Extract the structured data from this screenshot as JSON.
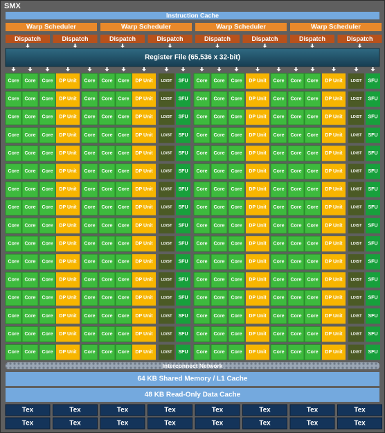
{
  "title": "SMX",
  "instruction_cache": "Instruction Cache",
  "warp_schedulers": [
    "Warp Scheduler",
    "Warp Scheduler",
    "Warp Scheduler",
    "Warp Scheduler"
  ],
  "dispatch_units": [
    "Dispatch",
    "Dispatch",
    "Dispatch",
    "Dispatch",
    "Dispatch",
    "Dispatch",
    "Dispatch",
    "Dispatch"
  ],
  "register_file": "Register File (65,536 x 32-bit)",
  "units": [
    [
      "Core",
      "Core",
      "Core",
      "DP Unit",
      "Core",
      "Core",
      "Core",
      "DP Unit",
      "LD/ST",
      "SFU",
      "Core",
      "Core",
      "Core",
      "DP Unit",
      "Core",
      "Core",
      "Core",
      "DP Unit",
      "LD/ST",
      "SFU"
    ],
    [
      "Core",
      "Core",
      "Core",
      "DP Unit",
      "Core",
      "Core",
      "Core",
      "DP Unit",
      "LD/ST",
      "SFU",
      "Core",
      "Core",
      "Core",
      "DP Unit",
      "Core",
      "Core",
      "Core",
      "DP Unit",
      "LD/ST",
      "SFU"
    ],
    [
      "Core",
      "Core",
      "Core",
      "DP Unit",
      "Core",
      "Core",
      "Core",
      "DP Unit",
      "LD/ST",
      "SFU",
      "Core",
      "Core",
      "Core",
      "DP Unit",
      "Core",
      "Core",
      "Core",
      "DP Unit",
      "LD/ST",
      "SFU"
    ],
    [
      "Core",
      "Core",
      "Core",
      "DP Unit",
      "Core",
      "Core",
      "Core",
      "DP Unit",
      "LD/ST",
      "SFU",
      "Core",
      "Core",
      "Core",
      "DP Unit",
      "Core",
      "Core",
      "Core",
      "DP Unit",
      "LD/ST",
      "SFU"
    ],
    [
      "Core",
      "Core",
      "Core",
      "DP Unit",
      "Core",
      "Core",
      "Core",
      "DP Unit",
      "LD/ST",
      "SFU",
      "Core",
      "Core",
      "Core",
      "DP Unit",
      "Core",
      "Core",
      "Core",
      "DP Unit",
      "LD/ST",
      "SFU"
    ],
    [
      "Core",
      "Core",
      "Core",
      "DP Unit",
      "Core",
      "Core",
      "Core",
      "DP Unit",
      "LD/ST",
      "SFU",
      "Core",
      "Core",
      "Core",
      "DP Unit",
      "Core",
      "Core",
      "Core",
      "DP Unit",
      "LD/ST",
      "SFU"
    ],
    [
      "Core",
      "Core",
      "Core",
      "DP Unit",
      "Core",
      "Core",
      "Core",
      "DP Unit",
      "LD/ST",
      "SFU",
      "Core",
      "Core",
      "Core",
      "DP Unit",
      "Core",
      "Core",
      "Core",
      "DP Unit",
      "LD/ST",
      "SFU"
    ],
    [
      "Core",
      "Core",
      "Core",
      "DP Unit",
      "Core",
      "Core",
      "Core",
      "DP Unit",
      "LD/ST",
      "SFU",
      "Core",
      "Core",
      "Core",
      "DP Unit",
      "Core",
      "Core",
      "Core",
      "DP Unit",
      "LD/ST",
      "SFU"
    ],
    [
      "Core",
      "Core",
      "Core",
      "DP Unit",
      "Core",
      "Core",
      "Core",
      "DP Unit",
      "LD/ST",
      "SFU",
      "Core",
      "Core",
      "Core",
      "DP Unit",
      "Core",
      "Core",
      "Core",
      "DP Unit",
      "LD/ST",
      "SFU"
    ],
    [
      "Core",
      "Core",
      "Core",
      "DP Unit",
      "Core",
      "Core",
      "Core",
      "DP Unit",
      "LD/ST",
      "SFU",
      "Core",
      "Core",
      "Core",
      "DP Unit",
      "Core",
      "Core",
      "Core",
      "DP Unit",
      "LD/ST",
      "SFU"
    ],
    [
      "Core",
      "Core",
      "Core",
      "DP Unit",
      "Core",
      "Core",
      "Core",
      "DP Unit",
      "LD/ST",
      "SFU",
      "Core",
      "Core",
      "Core",
      "DP Unit",
      "Core",
      "Core",
      "Core",
      "DP Unit",
      "LD/ST",
      "SFU"
    ],
    [
      "Core",
      "Core",
      "Core",
      "DP Unit",
      "Core",
      "Core",
      "Core",
      "DP Unit",
      "LD/ST",
      "SFU",
      "Core",
      "Core",
      "Core",
      "DP Unit",
      "Core",
      "Core",
      "Core",
      "DP Unit",
      "LD/ST",
      "SFU"
    ],
    [
      "Core",
      "Core",
      "Core",
      "DP Unit",
      "Core",
      "Core",
      "Core",
      "DP Unit",
      "LD/ST",
      "SFU",
      "Core",
      "Core",
      "Core",
      "DP Unit",
      "Core",
      "Core",
      "Core",
      "DP Unit",
      "LD/ST",
      "SFU"
    ],
    [
      "Core",
      "Core",
      "Core",
      "DP Unit",
      "Core",
      "Core",
      "Core",
      "DP Unit",
      "LD/ST",
      "SFU",
      "Core",
      "Core",
      "Core",
      "DP Unit",
      "Core",
      "Core",
      "Core",
      "DP Unit",
      "LD/ST",
      "SFU"
    ],
    [
      "Core",
      "Core",
      "Core",
      "DP Unit",
      "Core",
      "Core",
      "Core",
      "DP Unit",
      "LD/ST",
      "SFU",
      "Core",
      "Core",
      "Core",
      "DP Unit",
      "Core",
      "Core",
      "Core",
      "DP Unit",
      "LD/ST",
      "SFU"
    ],
    [
      "Core",
      "Core",
      "Core",
      "DP Unit",
      "Core",
      "Core",
      "Core",
      "DP Unit",
      "LD/ST",
      "SFU",
      "Core",
      "Core",
      "Core",
      "DP Unit",
      "Core",
      "Core",
      "Core",
      "DP Unit",
      "LD/ST",
      "SFU"
    ]
  ],
  "interconnect": "Interconnect Network",
  "shared_memory": "64 KB Shared Memory / L1 Cache",
  "read_only_cache": "48 KB Read-Only Data Cache",
  "tex_units": [
    [
      "Tex",
      "Tex",
      "Tex",
      "Tex",
      "Tex",
      "Tex",
      "Tex",
      "Tex"
    ],
    [
      "Tex",
      "Tex",
      "Tex",
      "Tex",
      "Tex",
      "Tex",
      "Tex",
      "Tex"
    ]
  ]
}
